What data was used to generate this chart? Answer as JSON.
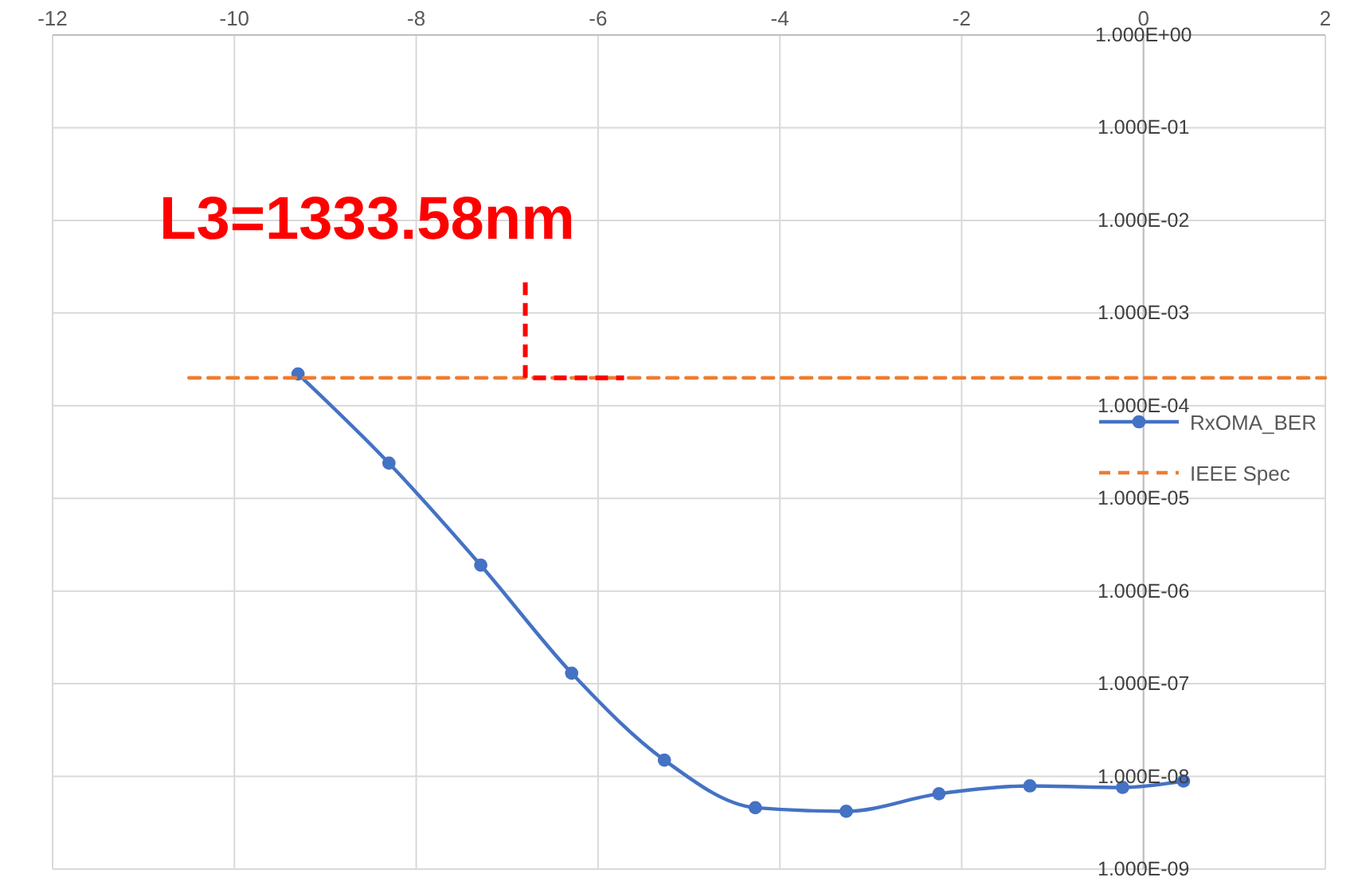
{
  "chart_data": {
    "type": "line",
    "annotations": [
      {
        "text": "L3=1333.58nm",
        "x": -6.8,
        "y": 0.0002
      }
    ],
    "xlim": [
      -12,
      2
    ],
    "xticks": [
      -12,
      -10,
      -8,
      -6,
      -4,
      -2,
      0,
      2
    ],
    "ylim": [
      1e-09,
      1
    ],
    "log": true,
    "yticks": [
      {
        "value": 1,
        "label": "1.000E+00"
      },
      {
        "value": 0.1,
        "label": "1.000E-01"
      },
      {
        "value": 0.01,
        "label": "1.000E-02"
      },
      {
        "value": 0.001,
        "label": "1.000E-03"
      },
      {
        "value": 0.0001,
        "label": "1.000E-04"
      },
      {
        "value": 1e-05,
        "label": "1.000E-05"
      },
      {
        "value": 1e-06,
        "label": "1.000E-06"
      },
      {
        "value": 1e-07,
        "label": "1.000E-07"
      },
      {
        "value": 1e-08,
        "label": "1.000E-08"
      },
      {
        "value": 1e-09,
        "label": "1.000E-09"
      }
    ],
    "grid": true,
    "legend": "right",
    "series": [
      {
        "name": "RxOMA_BER",
        "color": "#4472c4",
        "marker": "circle",
        "line_style": "solid",
        "x": [
          -9.3,
          -8.3,
          -7.29,
          -6.29,
          -5.27,
          -4.27,
          -3.27,
          -2.25,
          -1.25,
          -0.23,
          0.44
        ],
        "values": [
          0.00022,
          2.4e-05,
          1.9e-06,
          1.3e-07,
          1.5e-08,
          4.6e-09,
          4.2e-09,
          6.5e-09,
          7.9e-09,
          7.6e-09,
          8.9e-09
        ]
      },
      {
        "name": "IEEE Spec",
        "color": "#ed7d31",
        "marker": "none",
        "line_style": "dashed",
        "x": [
          -10.5,
          2
        ],
        "values": [
          0.0002,
          0.0002
        ]
      }
    ]
  }
}
